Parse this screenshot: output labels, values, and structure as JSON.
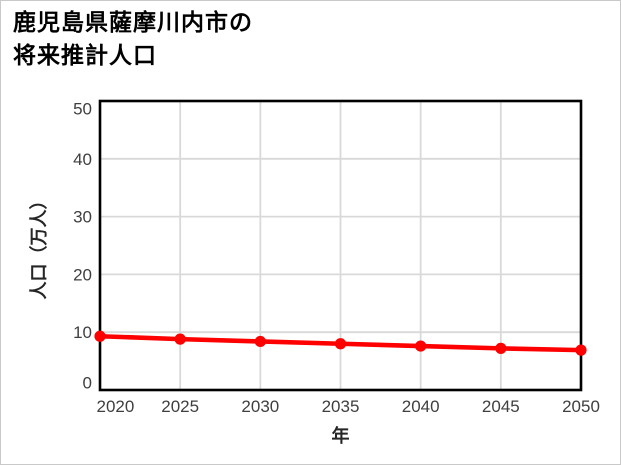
{
  "page": {
    "background": "#ffffff",
    "border_color": "#c9c9c9"
  },
  "header": {
    "title_line1": "鹿児島県薩摩川内市の",
    "title_line2": "将来推計人口"
  },
  "chart_data": {
    "type": "line",
    "title": "鹿児島県薩摩川内市の将来推計人口",
    "x": [
      2020,
      2025,
      2030,
      2035,
      2040,
      2045,
      2050
    ],
    "series": [
      {
        "name": "将来推計人口",
        "values": [
          9.3,
          8.8,
          8.4,
          8.0,
          7.6,
          7.2,
          6.9
        ],
        "color": "#ff0000",
        "marker": "circle"
      }
    ],
    "xlabel": "年",
    "ylabel": "人口（万人）",
    "xlim": [
      2020,
      2050
    ],
    "ylim": [
      0,
      50
    ],
    "x_ticks": [
      "2020",
      "2025",
      "2030",
      "2035",
      "2040",
      "2045",
      "2050"
    ],
    "y_ticks": [
      "0",
      "10",
      "20",
      "30",
      "40",
      "50"
    ],
    "grid": true,
    "legend_position": "none",
    "colors": {
      "line": "#ff0000",
      "frame": "#000000",
      "grid": "#d9d9d9",
      "tick_label": "#3f3f3f",
      "axis_title": "#262626",
      "title": "#000000"
    }
  }
}
